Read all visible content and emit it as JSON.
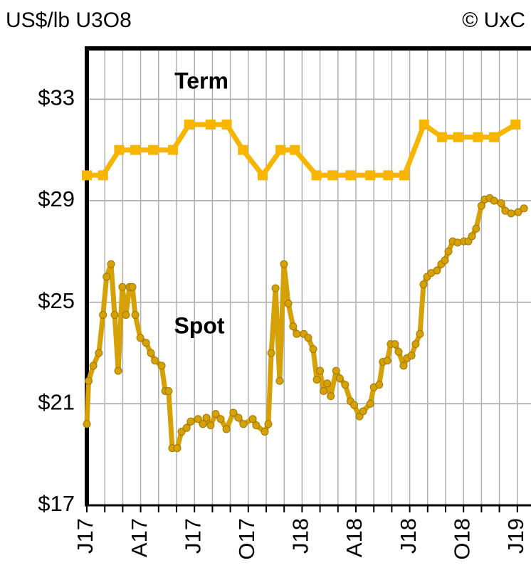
{
  "chart_data": {
    "type": "line",
    "title": "US$/lb U3O8",
    "source": "© UxC",
    "annotations": [
      "Term",
      "Spot"
    ],
    "xlim": [
      0,
      25
    ],
    "ylim": [
      17,
      35
    ],
    "xticks": [
      {
        "value": 0,
        "label": "J17"
      },
      {
        "value": 3,
        "label": "A17"
      },
      {
        "value": 6,
        "label": "J17"
      },
      {
        "value": 9,
        "label": "O17"
      },
      {
        "value": 12,
        "label": "J18"
      },
      {
        "value": 15,
        "label": "A18"
      },
      {
        "value": 18,
        "label": "J18"
      },
      {
        "value": 21,
        "label": "O18"
      },
      {
        "value": 24,
        "label": "J19"
      }
    ],
    "xminor_ticks": [
      1,
      2,
      4,
      5,
      7,
      8,
      10,
      11,
      13,
      14,
      16,
      17,
      19,
      20,
      22,
      23
    ],
    "yticks": [
      {
        "value": 17,
        "label": "$17"
      },
      {
        "value": 21,
        "label": "$21"
      },
      {
        "value": 25,
        "label": "$25"
      },
      {
        "value": 29,
        "label": "$29"
      },
      {
        "value": 33,
        "label": "$33"
      }
    ],
    "grid": true,
    "series": [
      {
        "name": "Term",
        "color": "#f7b500",
        "marker": "square",
        "x": [
          0,
          0.9,
          1.8,
          2.7,
          3.7,
          4.8,
          5.7,
          6.9,
          7.8,
          8.7,
          9.8,
          10.8,
          11.6,
          12.8,
          13.7,
          14.7,
          15.8,
          16.8,
          17.7,
          18.8,
          19.8,
          20.7,
          21.8,
          22.7,
          23.9
        ],
        "values": [
          30,
          30,
          31,
          31,
          31,
          31,
          32,
          32,
          32,
          31,
          30,
          31,
          31,
          30,
          30,
          30,
          30,
          30,
          30,
          32,
          31.5,
          31.5,
          31.5,
          31.5,
          32
        ]
      },
      {
        "name": "Spot",
        "color": "#d6a106",
        "marker": "circle",
        "x": [
          0,
          0.1,
          0.36,
          0.67,
          0.9,
          1.1,
          1.35,
          1.55,
          1.75,
          1.98,
          2.18,
          2.38,
          2.54,
          2.7,
          2.98,
          3.3,
          3.57,
          3.8,
          4.17,
          4.37,
          4.56,
          4.76,
          5.04,
          5.28,
          5.56,
          5.79,
          6.2,
          6.47,
          6.67,
          6.9,
          7.18,
          7.46,
          7.78,
          8.17,
          8.45,
          8.73,
          9.25,
          9.44,
          9.92,
          10.12,
          10.28,
          10.52,
          10.75,
          10.99,
          11.23,
          11.5,
          11.7,
          12.1,
          12.34,
          12.62,
          12.82,
          13.0,
          13.2,
          13.4,
          13.6,
          13.9,
          14.1,
          14.4,
          14.7,
          14.9,
          15.2,
          15.4,
          15.8,
          16.0,
          16.3,
          16.5,
          16.75,
          16.94,
          17.18,
          17.38,
          17.66,
          17.86,
          18.1,
          18.33,
          18.57,
          18.77,
          18.97,
          19.2,
          19.52,
          19.76,
          19.96,
          20.16,
          20.4,
          20.67,
          21.03,
          21.27,
          21.47,
          21.7,
          22.0,
          22.18,
          22.46,
          22.7,
          23.1,
          23.33,
          23.65,
          24.05,
          24.37
        ],
        "values": [
          20.2,
          21.9,
          22.5,
          23.0,
          24.5,
          26.0,
          26.5,
          24.5,
          22.3,
          25.6,
          24.5,
          25.6,
          25.6,
          24.5,
          23.6,
          23.4,
          23.0,
          22.7,
          22.5,
          21.5,
          21.5,
          19.25,
          19.25,
          19.9,
          20.05,
          20.3,
          20.4,
          20.2,
          20.45,
          20.15,
          20.6,
          20.4,
          20.0,
          20.65,
          20.45,
          20.2,
          20.4,
          20.15,
          19.9,
          20.2,
          23.0,
          25.55,
          21.9,
          26.5,
          24.95,
          24.05,
          23.75,
          23.75,
          23.6,
          23.15,
          21.95,
          22.3,
          21.5,
          21.8,
          21.3,
          22.3,
          22.0,
          21.75,
          21.1,
          20.95,
          20.5,
          20.7,
          21.0,
          21.65,
          21.75,
          22.65,
          22.7,
          23.35,
          23.35,
          23.05,
          22.5,
          22.8,
          22.9,
          23.35,
          23.75,
          25.7,
          26.0,
          26.15,
          26.25,
          26.5,
          26.65,
          27.0,
          27.4,
          27.35,
          27.4,
          27.4,
          27.6,
          27.9,
          28.8,
          29.05,
          29.1,
          29.0,
          28.9,
          28.6,
          28.5,
          28.55,
          28.7
        ]
      }
    ]
  }
}
